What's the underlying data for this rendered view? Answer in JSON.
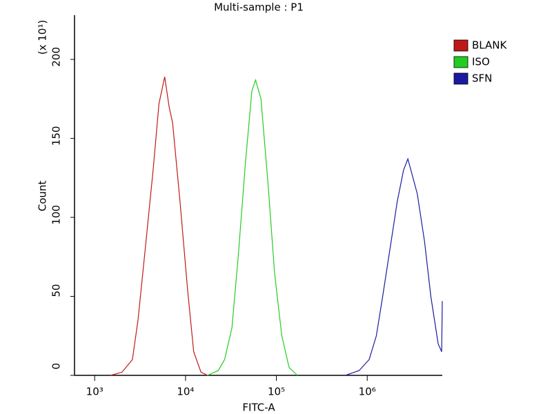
{
  "chart_data": {
    "type": "line",
    "title": "Multi-sample : P1",
    "x_label": "FITC-A",
    "y_label": "Count",
    "y_multiplier": "(x 10¹)",
    "xscale": "log",
    "xlim": [
      600,
      6700000
    ],
    "ylim": [
      0,
      228
    ],
    "xticks": [
      {
        "value": 1000,
        "label": "10³"
      },
      {
        "value": 10000,
        "label": "10⁴"
      },
      {
        "value": 100000,
        "label": "10⁵"
      },
      {
        "value": 1000000,
        "label": "10⁶"
      }
    ],
    "yticks": [
      0,
      50,
      100,
      150,
      200
    ],
    "legend": "right",
    "series": [
      {
        "name": "BLANK",
        "color": "#c01818",
        "x": [
          1500,
          2000,
          2600,
          3000,
          3600,
          4400,
          5100,
          5900,
          6600,
          7200,
          8700,
          10500,
          12300,
          14800,
          17400
        ],
        "values": [
          0,
          2,
          10,
          35,
          80,
          130,
          172,
          189,
          170,
          160,
          110,
          55,
          15,
          2,
          0
        ]
      },
      {
        "name": "ISO",
        "color": "#22cc22",
        "x": [
          17400,
          22900,
          26900,
          32400,
          38000,
          45700,
          53700,
          59000,
          67600,
          81300,
          95500,
          114800,
          138000,
          170000
        ],
        "values": [
          0,
          3,
          10,
          30,
          75,
          135,
          180,
          187,
          175,
          120,
          65,
          25,
          5,
          0
        ]
      },
      {
        "name": "SFN",
        "color": "#1a1aa0",
        "x": [
          575000,
          813000,
          1050000,
          1260000,
          1480000,
          1780000,
          2140000,
          2510000,
          2800000,
          3090000,
          3550000,
          4270000,
          5010000,
          6030000,
          6600000,
          6700000
        ],
        "values": [
          0,
          3,
          10,
          25,
          50,
          80,
          110,
          130,
          137,
          128,
          115,
          85,
          50,
          20,
          15,
          47
        ]
      }
    ]
  }
}
